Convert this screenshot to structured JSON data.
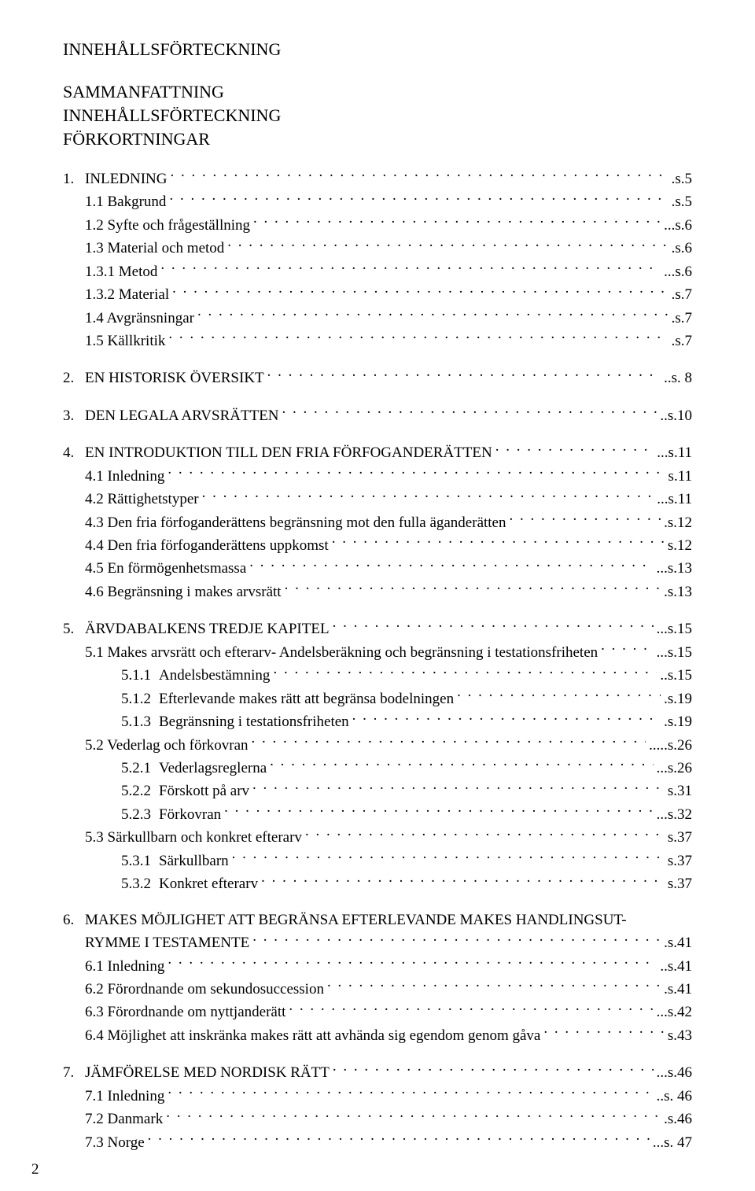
{
  "mainTitle": "INNEHÅLLSFÖRTECKNING",
  "prelim": [
    "SAMMANFATTNING",
    "INNEHÅLLSFÖRTECKNING",
    "FÖRKORTNINGAR"
  ],
  "sections": [
    {
      "num": "1.",
      "head": "INLEDNING",
      "page": ".s.5",
      "items": [
        {
          "label": "1.1 Bakgrund",
          "page": ".s.5",
          "level": 1
        },
        {
          "label": "1.2 Syfte och frågeställning",
          "page": "...s.6",
          "level": 1
        },
        {
          "label": "1.3 Material och metod",
          "page": ".s.6",
          "level": 1
        },
        {
          "label": "1.3.1 Metod",
          "page": "...s.6",
          "level": 1
        },
        {
          "label": "1.3.2 Material",
          "page": ".s.7",
          "level": 1
        },
        {
          "label": "1.4 Avgränsningar",
          "page": ".s.7",
          "level": 1
        },
        {
          "label": "1.5 Källkritik",
          "page": ".s.7",
          "level": 1
        }
      ]
    },
    {
      "num": "2.",
      "head": "EN HISTORISK ÖVERSIKT",
      "page": "..s. 8",
      "items": []
    },
    {
      "num": "3.",
      "head": "DEN LEGALA ARVSRÄTTEN",
      "page": "..s.10",
      "items": []
    },
    {
      "num": "4.",
      "head": "EN INTRODUKTION TILL DEN FRIA FÖRFOGANDERÄTTEN",
      "page": "...s.11",
      "items": [
        {
          "label": "4.1 Inledning",
          "page": "s.11",
          "level": 1
        },
        {
          "label": "4.2 Rättighetstyper",
          "page": "...s.11",
          "level": 1
        },
        {
          "label": "4.3 Den fria förfoganderättens begränsning mot den fulla äganderätten",
          "page": ".s.12",
          "level": 1
        },
        {
          "label": "4.4 Den fria förfoganderättens uppkomst",
          "page": "s.12",
          "level": 1
        },
        {
          "label": "4.5 En förmögenhetsmassa",
          "page": "...s.13",
          "level": 1
        },
        {
          "label": "4.6 Begränsning i makes arvsrätt",
          "page": ".s.13",
          "level": 1
        }
      ]
    },
    {
      "num": "5.",
      "head": "ÄRVDABALKENS TREDJE KAPITEL",
      "page": "...s.15",
      "items": [
        {
          "label": "5.1 Makes arvsrätt och efterarv- Andelsberäkning och begränsning i testationsfriheten",
          "page": "...s.15",
          "level": 1
        },
        {
          "subnum": "5.1.1",
          "label": "Andelsbestämning",
          "page": "..s.15",
          "level": 2
        },
        {
          "subnum": "5.1.2",
          "label": "Efterlevande makes rätt att begränsa bodelningen",
          "page": ".s.19",
          "level": 2
        },
        {
          "subnum": "5.1.3",
          "label": "Begränsning i testationsfriheten",
          "page": ".s.19",
          "level": 2
        },
        {
          "label": "5.2 Vederlag och förkovran",
          "page": ".....s.26",
          "level": 1
        },
        {
          "subnum": "5.2.1",
          "label": "Vederlagsreglerna",
          "page": "...s.26",
          "level": 2
        },
        {
          "subnum": "5.2.2",
          "label": "Förskott på arv",
          "page": "s.31",
          "level": 2
        },
        {
          "subnum": "5.2.3",
          "label": "Förkovran",
          "page": "...s.32",
          "level": 2
        },
        {
          "label": "5.3 Särkullbarn och konkret efterarv",
          "page": "s.37",
          "level": 1
        },
        {
          "subnum": "5.3.1",
          "label": "Särkullbarn",
          "page": "s.37",
          "level": 2
        },
        {
          "subnum": "5.3.2",
          "label": "Konkret efterarv",
          "page": "s.37",
          "level": 2
        }
      ]
    },
    {
      "num": "6.",
      "head": "MAKES MÖJLIGHET ATT BEGRÄNSA EFTERLEVANDE MAKES HANDLINGSUT-",
      "wrapLine": "RYMME I TESTAMENTE",
      "page": ".s.41",
      "items": [
        {
          "label": "6.1 Inledning",
          "page": "..s.41",
          "level": 1
        },
        {
          "label": "6.2 Förordnande om sekundosuccession",
          "page": ".s.41",
          "level": 1
        },
        {
          "label": "6.3 Förordnande om nyttjanderätt",
          "page": "...s.42",
          "level": 1
        },
        {
          "label": "6.4 Möjlighet att inskränka makes rätt att avhända sig egendom genom gåva",
          "page": "s.43",
          "level": 1
        }
      ]
    },
    {
      "num": "7.",
      "head": "JÄMFÖRELSE MED NORDISK RÄTT",
      "page": "...s.46",
      "items": [
        {
          "label": "7.1 Inledning",
          "page": "..s. 46",
          "level": 1
        },
        {
          "label": "7.2 Danmark",
          "page": ".s.46",
          "level": 1
        },
        {
          "label": "7.3 Norge",
          "page": "...s. 47",
          "level": 1
        }
      ]
    }
  ],
  "pageNumber": "2"
}
